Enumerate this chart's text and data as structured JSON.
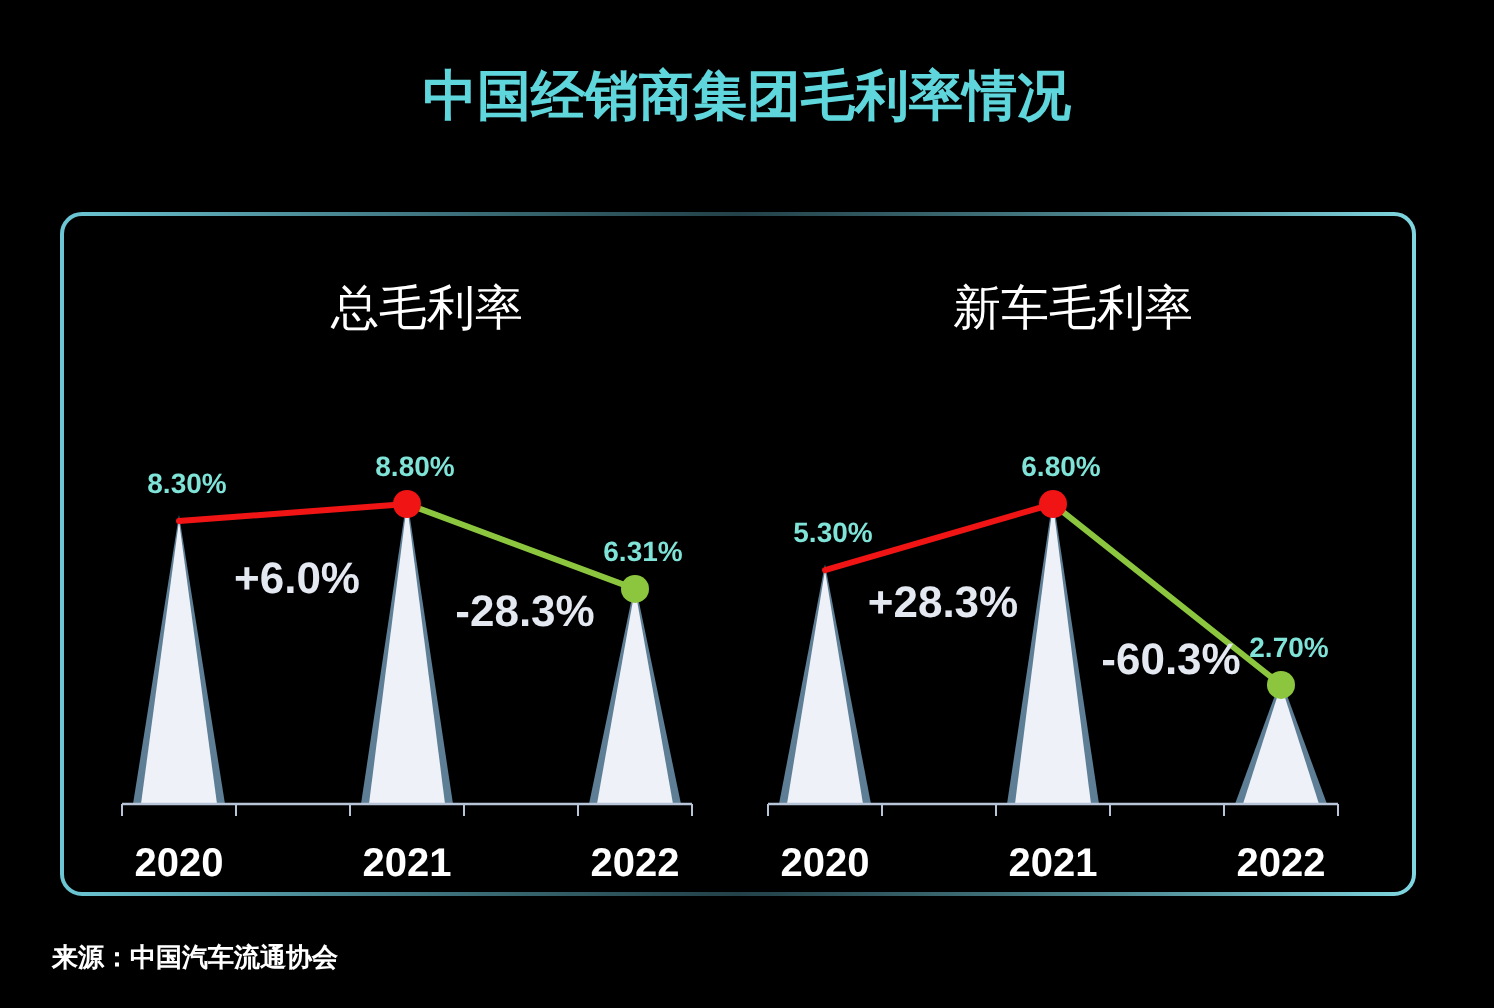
{
  "chart_data": [
    {
      "type": "other",
      "title": "中国经销商集团毛利率情况",
      "annotations": [
        "来源：中国汽车流通协会"
      ]
    },
    {
      "type": "line",
      "title": "总毛利率",
      "categories": [
        "2020",
        "2021",
        "2022"
      ],
      "annotations": [
        "+6.0%",
        "-28.3%"
      ],
      "series": [
        {
          "colors": [
            null,
            "#f01414",
            "#8cc63f"
          ],
          "values": [
            8.3,
            8.8,
            6.31
          ],
          "value_labels": [
            "8.30%",
            "8.80%",
            "6.31%"
          ]
        }
      ]
    },
    {
      "type": "line",
      "title": "新车毛利率",
      "categories": [
        "2020",
        "2021",
        "2022"
      ],
      "annotations": [
        "+28.3%",
        "-60.3%"
      ],
      "series": [
        {
          "colors": [
            null,
            "#f01414",
            "#8cc63f"
          ],
          "values": [
            5.3,
            6.8,
            2.7
          ],
          "value_labels": [
            "5.30%",
            "6.80%",
            "2.70%"
          ]
        }
      ]
    }
  ]
}
